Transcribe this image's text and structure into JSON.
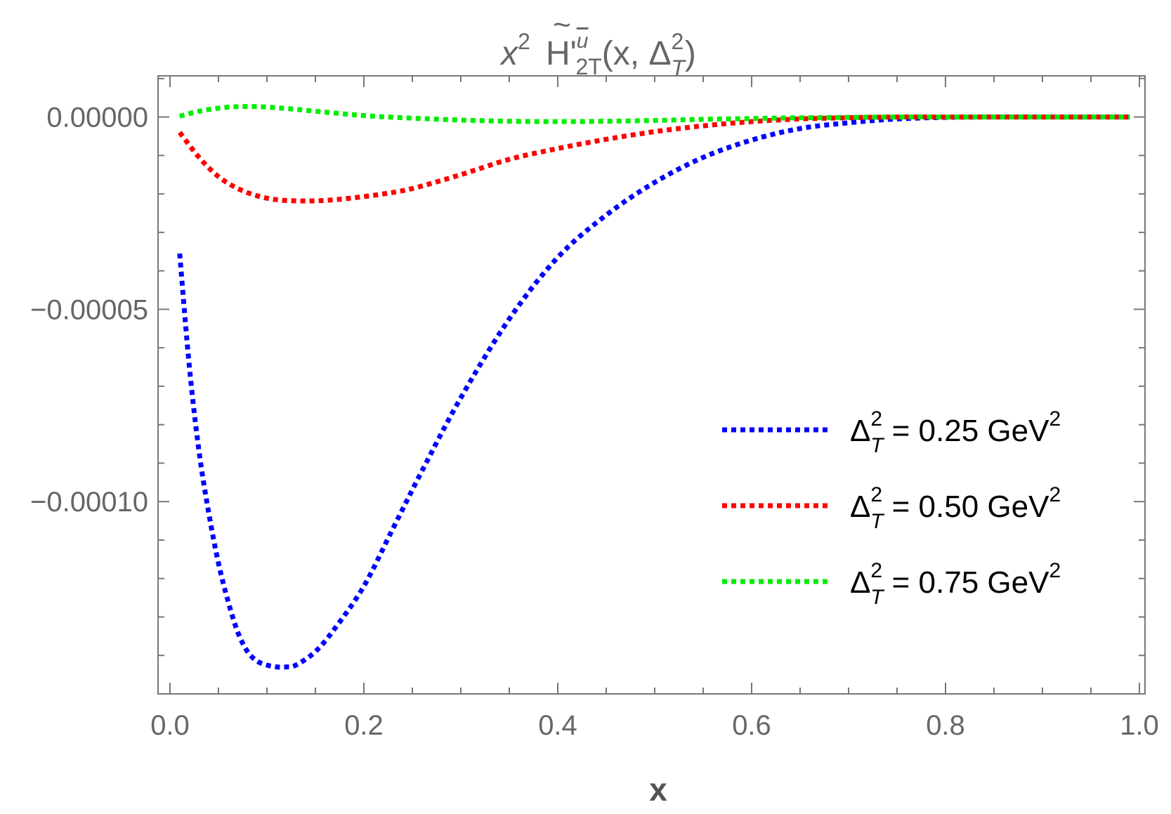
{
  "chart_data": {
    "type": "line",
    "title": {
      "prefix": "x",
      "prefix_sup": "2",
      "func": "H'",
      "func_tilde": "~",
      "func_sup": "u",
      "func_sub": "2T",
      "args_open": "(x, Δ",
      "args_sup": "2",
      "args_sub": "T",
      "args_close": ")"
    },
    "xlabel": "x",
    "ylabel": "",
    "xlim": [
      0.0,
      1.0
    ],
    "ylim": [
      -0.00015,
      1.07e-05
    ],
    "x_ticks": [
      "0.0",
      "0.2",
      "0.4",
      "0.6",
      "0.8",
      "1.0"
    ],
    "y_ticks": [
      "0.00000",
      "−0.00005",
      "−0.00010"
    ],
    "x_tick_values": [
      0.0,
      0.2,
      0.4,
      0.6,
      0.8,
      1.0
    ],
    "y_tick_values": [
      0.0,
      -5e-05,
      -0.0001
    ],
    "grid": false,
    "legend_position": "right",
    "series": [
      {
        "name": "Δ_T^2 = 0.25 GeV^2",
        "legend": {
          "lhs": "Δ",
          "sup": "2",
          "sub": "T",
          "rhs": " = 0.25 GeV",
          "unit_sup": "2"
        },
        "color": "#0000ff",
        "x": [
          0.01,
          0.02,
          0.03,
          0.04,
          0.05,
          0.06,
          0.07,
          0.08,
          0.09,
          0.1,
          0.11,
          0.12,
          0.13,
          0.15,
          0.17,
          0.2,
          0.23,
          0.26,
          0.3,
          0.35,
          0.4,
          0.45,
          0.5,
          0.55,
          0.6,
          0.65,
          0.7,
          0.75,
          0.8,
          0.85,
          0.9,
          0.95,
          0.99
        ],
        "y": [
          -3.55e-05,
          -6.5e-05,
          -8.7e-05,
          -0.000103,
          -0.000116,
          -0.000126,
          -0.000134,
          -0.000139,
          -0.0001415,
          -0.0001425,
          -0.000143,
          -0.000143,
          -0.0001425,
          -0.000139,
          -0.000133,
          -0.000122,
          -0.000107,
          -9.2e-05,
          -7.3e-05,
          -5.25e-05,
          -3.65e-05,
          -2.55e-05,
          -1.7e-05,
          -1.05e-05,
          -6e-06,
          -3e-06,
          -1.5e-06,
          -5e-07,
          -1e-07,
          0.0,
          0.0,
          0.0,
          0.0
        ]
      },
      {
        "name": "Δ_T^2 = 0.50 GeV^2",
        "legend": {
          "lhs": "Δ",
          "sup": "2",
          "sub": "T",
          "rhs": " = 0.50 GeV",
          "unit_sup": "2"
        },
        "color": "#ff0000",
        "x": [
          0.01,
          0.03,
          0.05,
          0.07,
          0.09,
          0.11,
          0.13,
          0.15,
          0.17,
          0.19,
          0.22,
          0.25,
          0.3,
          0.35,
          0.4,
          0.45,
          0.5,
          0.55,
          0.6,
          0.65,
          0.7,
          0.75,
          0.8,
          0.85,
          0.9,
          0.95,
          0.99
        ],
        "y": [
          -4e-06,
          -1.05e-05,
          -1.55e-05,
          -1.86e-05,
          -2.05e-05,
          -2.15e-05,
          -2.18e-05,
          -2.18e-05,
          -2.15e-05,
          -2.1e-05,
          -2e-05,
          -1.86e-05,
          -1.5e-05,
          -1.1e-05,
          -8.2e-06,
          -5.8e-06,
          -3.8e-06,
          -2.3e-06,
          -1.2e-06,
          -5e-07,
          -2e-07,
          0.0,
          0.0,
          0.0,
          0.0,
          0.0,
          0.0
        ]
      },
      {
        "name": "Δ_T^2 = 0.75 GeV^2",
        "legend": {
          "lhs": "Δ",
          "sup": "2",
          "sub": "T",
          "rhs": " = 0.75 GeV",
          "unit_sup": "2"
        },
        "color": "#00ee00",
        "x": [
          0.01,
          0.03,
          0.05,
          0.07,
          0.09,
          0.11,
          0.13,
          0.15,
          0.18,
          0.21,
          0.25,
          0.3,
          0.35,
          0.4,
          0.45,
          0.5,
          0.55,
          0.6,
          0.65,
          0.7,
          0.75,
          0.8,
          0.85,
          0.9,
          0.95,
          0.99
        ],
        "y": [
          2e-07,
          1.5e-06,
          2.3e-06,
          2.7e-06,
          2.7e-06,
          2.4e-06,
          2e-06,
          1.5e-06,
          8e-07,
          2e-07,
          -3e-07,
          -8e-07,
          -1.1e-06,
          -1.2e-06,
          -1.1e-06,
          -9e-07,
          -6e-07,
          -4e-07,
          -2e-07,
          -1e-07,
          0.0,
          0.0,
          0.0,
          0.0,
          0.0,
          0.0
        ]
      }
    ]
  }
}
